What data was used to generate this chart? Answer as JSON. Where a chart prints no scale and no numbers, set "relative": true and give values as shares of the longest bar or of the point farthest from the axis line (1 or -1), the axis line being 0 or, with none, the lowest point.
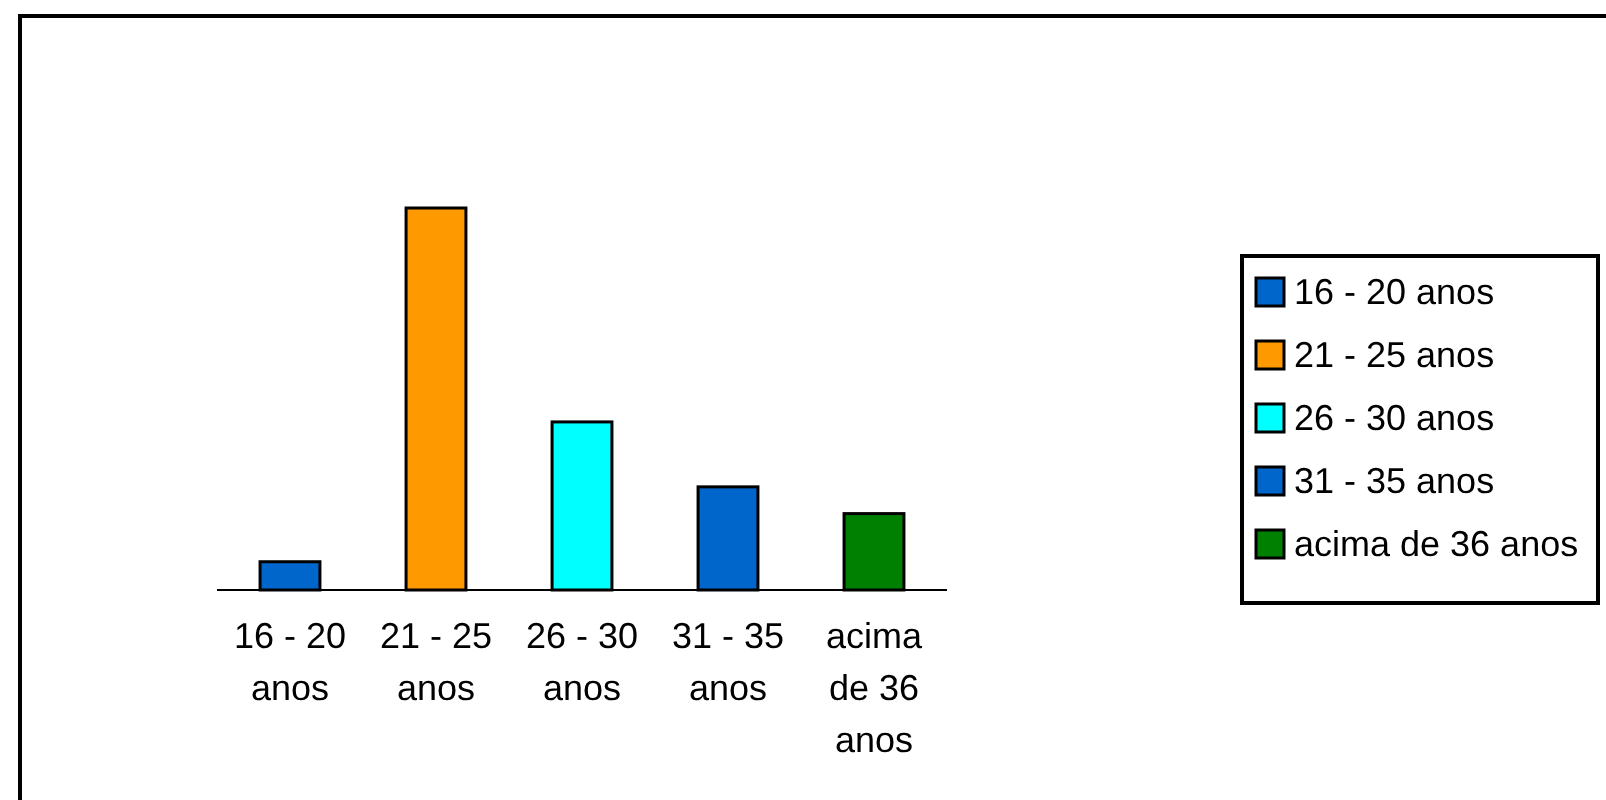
{
  "chart_data": {
    "type": "bar",
    "relative": true,
    "stacked": true,
    "categories": [
      "16 - 20 anos",
      "21 - 25 anos",
      "26 - 30 anos",
      "31 - 35 anos",
      "acima de 36 anos"
    ],
    "series": [
      {
        "name": "16 - 20 anos",
        "color": "#0066cc",
        "values": [
          0.074,
          null,
          null,
          null,
          null
        ]
      },
      {
        "name": "21 - 25 anos",
        "color": "#ff9900",
        "values": [
          null,
          1,
          null,
          null,
          null
        ]
      },
      {
        "name": "26 - 30 anos",
        "color": "#00ffff",
        "values": [
          null,
          null,
          0.44,
          null,
          null
        ]
      },
      {
        "name": "31 - 35 anos",
        "color": "#0066cc",
        "values": [
          null,
          null,
          null,
          0.27,
          null
        ]
      },
      {
        "name": "acima de 36 anos",
        "color": "#008000",
        "values": [
          null,
          null,
          null,
          null,
          0.2
        ]
      }
    ],
    "legend": "right"
  }
}
